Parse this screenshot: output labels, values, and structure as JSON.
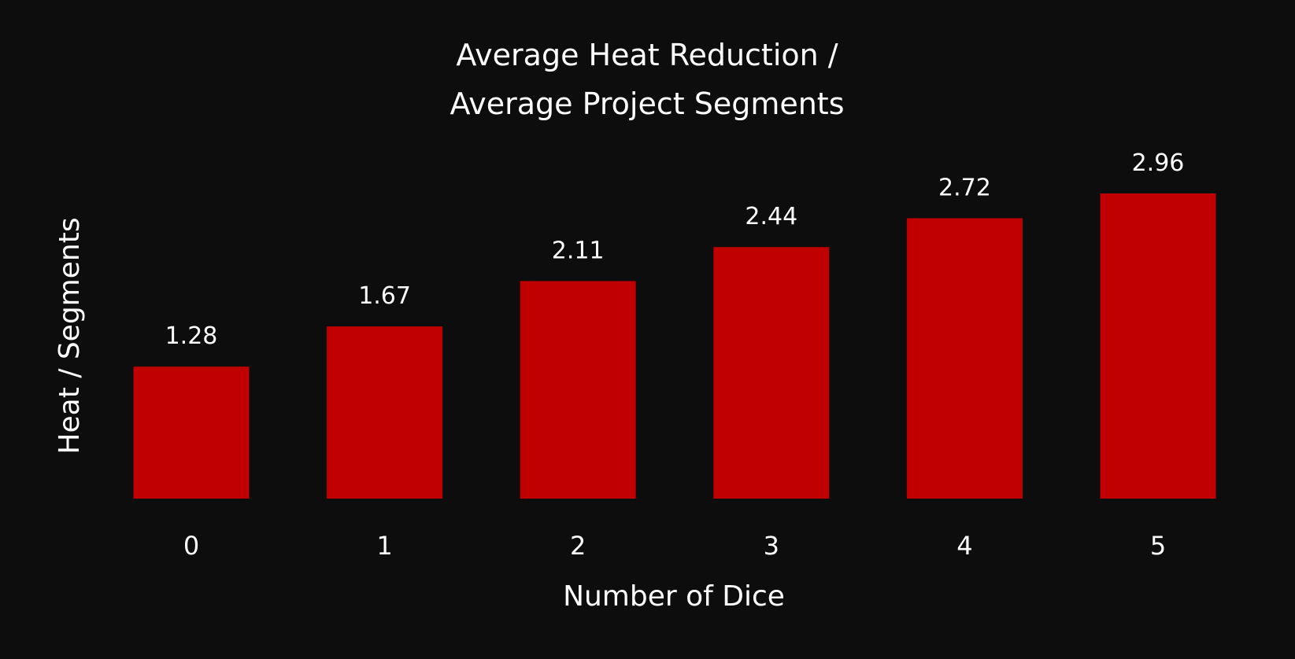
{
  "chart_data": {
    "type": "bar",
    "title": [
      "Average Heat Reduction /",
      "Average Project Segments"
    ],
    "xlabel": "Number of Dice",
    "ylabel": "Heat / Segments",
    "categories": [
      "0",
      "1",
      "2",
      "3",
      "4",
      "5"
    ],
    "values": [
      1.28,
      1.67,
      2.11,
      2.44,
      2.72,
      2.96
    ],
    "data_labels": [
      "1.28",
      "1.67",
      "2.11",
      "2.44",
      "2.72",
      "2.96"
    ],
    "ylim": [
      0,
      3
    ],
    "grid": false,
    "legend": "none",
    "colors": {
      "background": "#0d0d0d",
      "bar": "#c00000",
      "text": "#ffffff"
    }
  }
}
